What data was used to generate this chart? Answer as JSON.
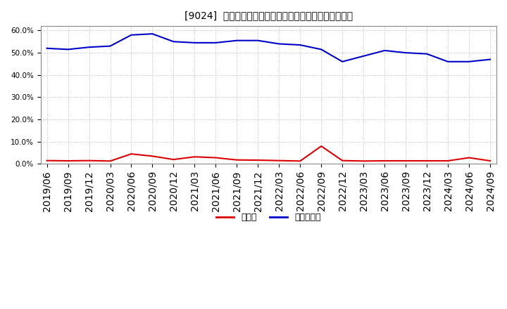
{
  "title": "[9024]  現预金、有利子負債の総資産に対する比率の推移",
  "x_labels": [
    "2019/06",
    "2019/09",
    "2019/12",
    "2020/03",
    "2020/06",
    "2020/09",
    "2020/12",
    "2021/03",
    "2021/06",
    "2021/09",
    "2021/12",
    "2022/03",
    "2022/06",
    "2022/09",
    "2022/12",
    "2023/03",
    "2023/06",
    "2023/09",
    "2023/12",
    "2024/03",
    "2024/06",
    "2024/09"
  ],
  "cash": [
    1.5,
    1.4,
    1.5,
    1.3,
    4.5,
    3.5,
    2.0,
    3.2,
    2.8,
    1.8,
    1.7,
    1.5,
    1.3,
    8.0,
    1.5,
    1.3,
    1.4,
    1.4,
    1.4,
    1.4,
    2.8,
    1.4
  ],
  "debt": [
    52.0,
    51.5,
    52.5,
    53.0,
    58.0,
    58.5,
    55.0,
    54.5,
    54.5,
    55.5,
    55.5,
    54.0,
    53.5,
    51.5,
    46.0,
    48.5,
    51.0,
    50.0,
    49.5,
    46.0,
    46.0,
    47.0
  ],
  "cash_color": "#dd0000",
  "debt_color": "#0000cc",
  "background_color": "#ffffff",
  "grid_color": "#b0b0b0",
  "ylim": [
    0,
    62
  ],
  "yticks": [
    0.0,
    10.0,
    20.0,
    30.0,
    40.0,
    50.0,
    60.0
  ],
  "legend_cash": "現预金",
  "legend_debt": "有利子負債",
  "title_fontsize": 12,
  "tick_fontsize": 7.5,
  "legend_fontsize": 9
}
